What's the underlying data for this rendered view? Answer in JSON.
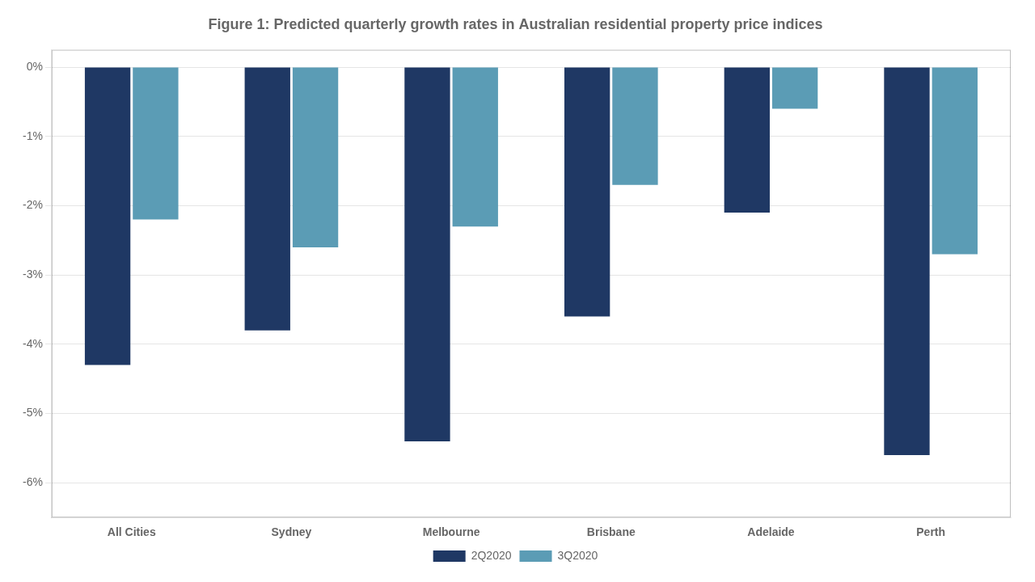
{
  "chart_data": {
    "type": "bar",
    "title": "Figure 1: Predicted quarterly growth rates in Australian residential property price indices",
    "categories": [
      "All Cities",
      "Sydney",
      "Melbourne",
      "Brisbane",
      "Adelaide",
      "Perth"
    ],
    "series": [
      {
        "name": "2Q2020",
        "color": "#1F3864",
        "values": [
          -4.3,
          -3.8,
          -5.4,
          -3.6,
          -2.1,
          -5.6
        ]
      },
      {
        "name": "3Q2020",
        "color": "#5B9CB5",
        "values": [
          -2.2,
          -2.6,
          -2.3,
          -1.7,
          -0.6,
          -2.7
        ]
      }
    ],
    "ylim": [
      -6.5,
      0.25
    ],
    "yticks": [
      {
        "value": 0,
        "label": "0%"
      },
      {
        "value": -1,
        "label": "-1%"
      },
      {
        "value": -2,
        "label": "-2%"
      },
      {
        "value": -3,
        "label": "-3%"
      },
      {
        "value": -4,
        "label": "-4%"
      },
      {
        "value": -5,
        "label": "-5%"
      },
      {
        "value": -6,
        "label": "-6%"
      }
    ],
    "grid": true,
    "legend": "bottom"
  }
}
